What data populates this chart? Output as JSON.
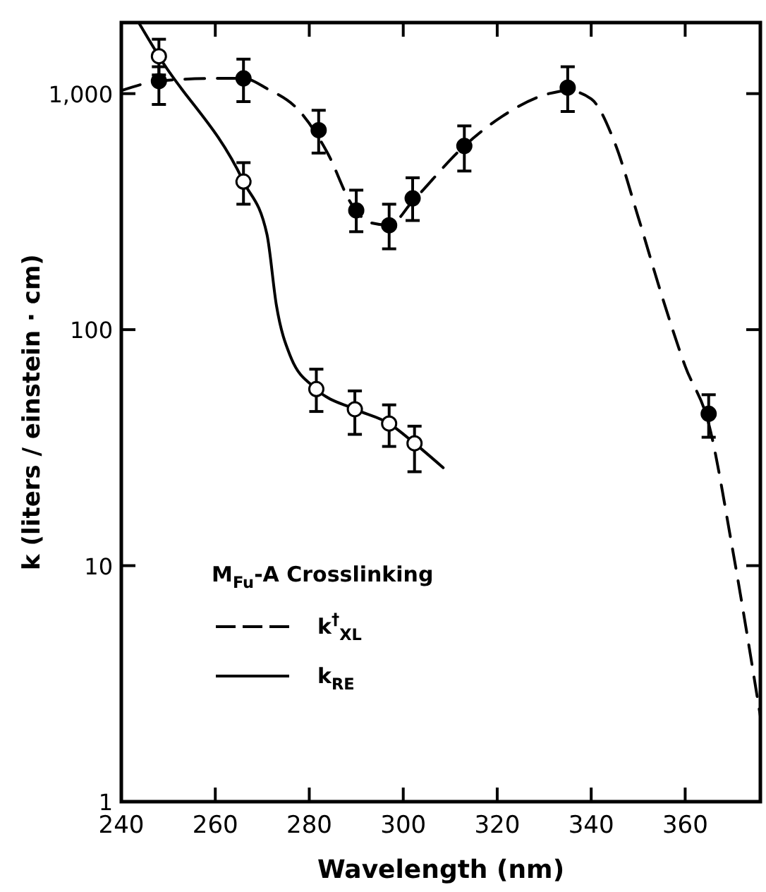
{
  "chart_data": {
    "type": "scatter",
    "xlabel": "Wavelength (nm)",
    "ylabel": "k (liters / einstein · cm)",
    "legend_title": "M$_{Fu}$-A Crosslinking",
    "log": "y",
    "grid": false,
    "legend": "bottom left",
    "xlim": [
      240,
      376
    ],
    "xticks": [
      240,
      260,
      280,
      300,
      320,
      340,
      360
    ],
    "ylim": [
      1,
      2000
    ],
    "yticks": [
      1,
      10,
      100,
      {
        "value": 1000,
        "label": "1,000"
      }
    ],
    "series": [
      {
        "type": "line",
        "name": "k$^{†}$$_{XL}$",
        "color": "#000000",
        "line_style": "dashed",
        "x": [
          240,
          248,
          260,
          266,
          271,
          278,
          284,
          289,
          293,
          297,
          302,
          313,
          321,
          331,
          335,
          340,
          345,
          350,
          355,
          360,
          365,
          370,
          376
        ],
        "values": [
          1030,
          1130,
          1160,
          1160,
          1050,
          840,
          555,
          340,
          284,
          277,
          350,
          600,
          800,
          1000,
          1030,
          950,
          620,
          300,
          140,
          70,
          40,
          12,
          2.3
        ]
      },
      {
        "type": "line",
        "name": "k$_{RE}$",
        "color": "#000000",
        "line_style": "solid",
        "x": [
          243.7,
          248,
          266,
          271,
          273,
          276,
          281.5,
          289.7,
          297,
          302.4,
          308.5
        ],
        "values": [
          2000,
          1440,
          424,
          253,
          127,
          77,
          56,
          46,
          40,
          33,
          26
        ]
      },
      {
        "color": "#000000",
        "marker": "circle",
        "x": [
          248,
          266,
          282,
          290,
          297,
          302,
          313,
          335,
          365
        ],
        "values": [
          1130,
          1160,
          700,
          320,
          277,
          360,
          600,
          1060,
          44
        ],
        "errors": [
          [
            900,
            1300
          ],
          [
            925,
            1400
          ],
          [
            560,
            850
          ],
          [
            260,
            390
          ],
          [
            220,
            340
          ],
          [
            290,
            440
          ],
          [
            470,
            730
          ],
          [
            840,
            1300
          ],
          [
            35,
            53
          ]
        ]
      },
      {
        "color": "#ffffff",
        "marker": "circle",
        "x": [
          248,
          266,
          281.5,
          289.7,
          297,
          302.4
        ],
        "values": [
          1440,
          424,
          56,
          46,
          40,
          33
        ],
        "errors": [
          [
            1200,
            1700
          ],
          [
            340,
            510
          ],
          [
            45,
            68
          ],
          [
            36,
            55
          ],
          [
            32,
            48
          ],
          [
            25,
            39
          ]
        ]
      }
    ]
  }
}
